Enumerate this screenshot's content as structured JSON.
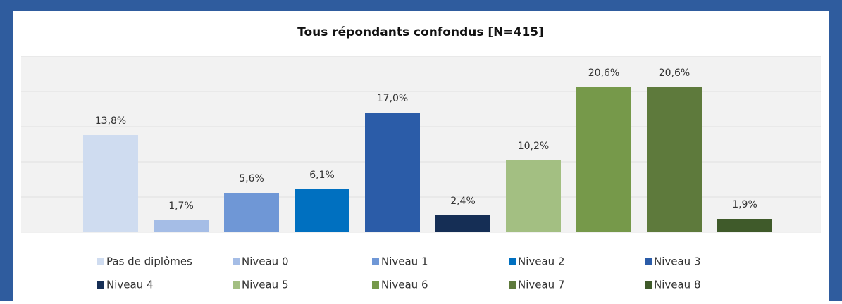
{
  "chart_data": {
    "type": "bar",
    "title": "Tous répondants confondus [N=415]",
    "ylim": [
      0,
      25
    ],
    "yticks": [
      0,
      5,
      10,
      15,
      20,
      25
    ],
    "grid": true,
    "legend": "bottom",
    "series": [
      {
        "name": "Pas de diplômes",
        "color": "#cfdcf0",
        "values": [
          13.8
        ],
        "value_labels": [
          "13,8%"
        ]
      },
      {
        "name": "Niveau 0",
        "color": "#a5bde6",
        "values": [
          1.7
        ],
        "value_labels": [
          "1,7%"
        ]
      },
      {
        "name": "Niveau 1",
        "color": "#6f97d6",
        "values": [
          5.6
        ],
        "value_labels": [
          "5,6%"
        ]
      },
      {
        "name": "Niveau 2",
        "color": "#0070c0",
        "values": [
          6.1
        ],
        "value_labels": [
          "6,1%"
        ]
      },
      {
        "name": "Niveau 3",
        "color": "#2b5ca8",
        "values": [
          17.0
        ],
        "value_labels": [
          "17,0%"
        ]
      },
      {
        "name": "Niveau 4",
        "color": "#152e55",
        "values": [
          2.4
        ],
        "value_labels": [
          "2,4%"
        ]
      },
      {
        "name": "Niveau 5",
        "color": "#a3bf82",
        "values": [
          10.2
        ],
        "value_labels": [
          "10,2%"
        ]
      },
      {
        "name": "Niveau 6",
        "color": "#76994a",
        "values": [
          20.6
        ],
        "value_labels": [
          "20,6%"
        ]
      },
      {
        "name": "Niveau 7",
        "color": "#5e7a3c",
        "values": [
          20.6
        ],
        "value_labels": [
          "20,6%"
        ]
      },
      {
        "name": "Niveau 8",
        "color": "#3f5a2a",
        "values": [
          1.9
        ],
        "value_labels": [
          "1,9%"
        ]
      }
    ]
  }
}
